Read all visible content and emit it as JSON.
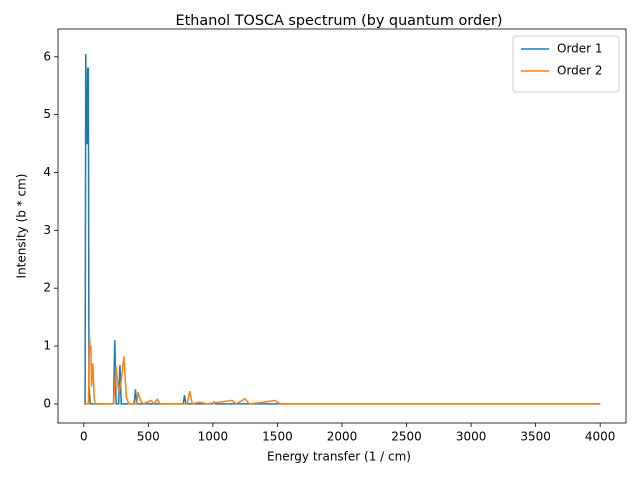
{
  "chart_data": {
    "type": "line",
    "title": "Ethanol TOSCA spectrum (by quantum order)",
    "xlabel": "Energy transfer (1 / cm)",
    "ylabel": "Intensity (b * cm)",
    "xlim": [
      -200,
      4200
    ],
    "ylim": [
      -0.33,
      6.48
    ],
    "xticks": [
      0,
      500,
      1000,
      1500,
      2000,
      2500,
      3000,
      3500,
      4000
    ],
    "yticks": [
      0,
      1,
      2,
      3,
      4,
      5,
      6
    ],
    "legend": "upper right",
    "series": [
      {
        "name": "Order 1",
        "color": "#1f77b4",
        "x": [
          0,
          10,
          15,
          20,
          25,
          30,
          35,
          40,
          50,
          230,
          240,
          250,
          270,
          280,
          290,
          390,
          400,
          410,
          770,
          780,
          790,
          1000,
          1010,
          1020,
          1500,
          4000
        ],
        "values": [
          0,
          0,
          6.05,
          4.5,
          4.5,
          5.8,
          5.8,
          0.3,
          0,
          0,
          1.1,
          0,
          0,
          0.67,
          0,
          0,
          0.25,
          0,
          0,
          0.15,
          0,
          0,
          0.03,
          0,
          0,
          0
        ]
      },
      {
        "name": "Order 2",
        "color": "#ff7f0e",
        "x": [
          0,
          35,
          45,
          50,
          55,
          60,
          70,
          80,
          90,
          230,
          250,
          270,
          290,
          310,
          330,
          350,
          410,
          420,
          440,
          460,
          520,
          540,
          570,
          590,
          800,
          820,
          840,
          900,
          950,
          1150,
          1180,
          1250,
          1280,
          1400,
          1480,
          1520,
          4000
        ],
        "values": [
          0,
          0,
          1.15,
          0.9,
          1.0,
          0.3,
          0.7,
          0.1,
          0,
          0,
          0.65,
          0.2,
          0.4,
          0.82,
          0.1,
          0,
          0,
          0.2,
          0.05,
          0,
          0.06,
          0,
          0.08,
          0,
          0,
          0.22,
          0,
          0.03,
          0,
          0.06,
          0,
          0.09,
          0,
          0.03,
          0.06,
          0,
          0
        ]
      }
    ]
  }
}
